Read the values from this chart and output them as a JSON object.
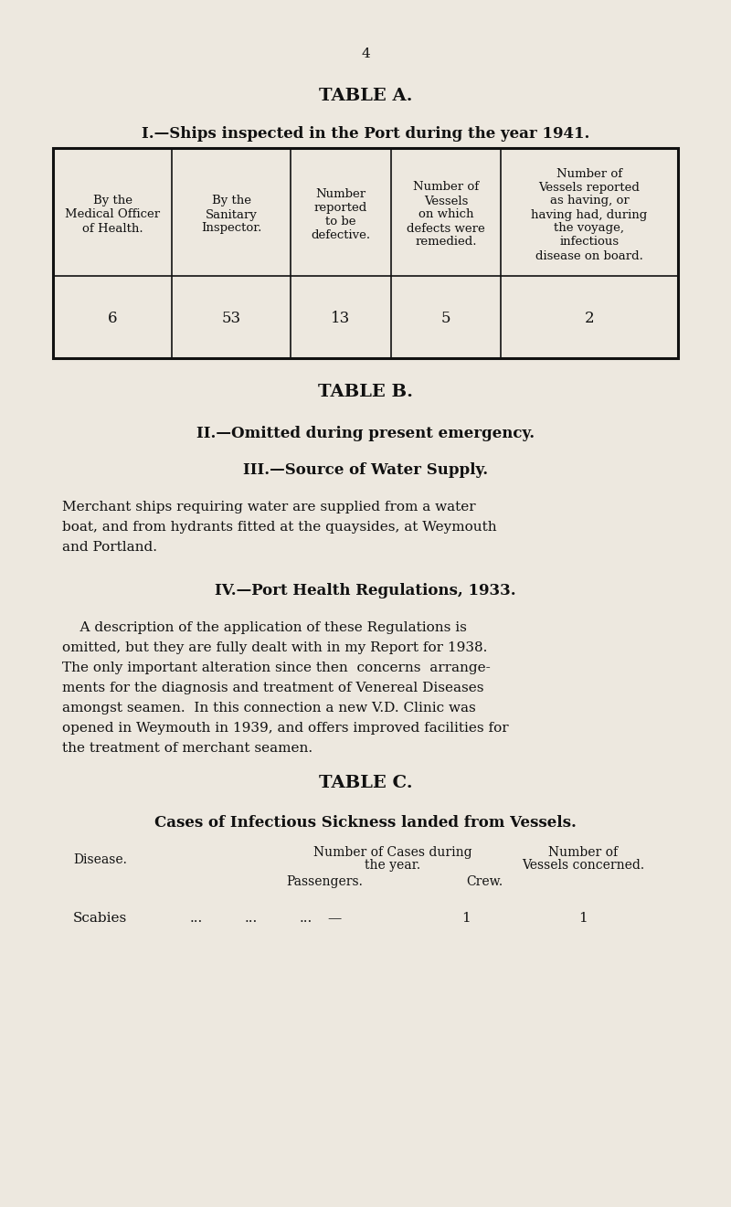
{
  "bg_color": "#ede8df",
  "text_color": "#111111",
  "page_number": "4",
  "table_a_title": "TABLE A.",
  "table_a_subtitle": "I.—Ships inspected in the Port during the year 1941.",
  "table_a_headers": [
    "By the\nMedical Officer\nof Health.",
    "By the\nSanitary\nInspector.",
    "Number\nreported\nto be\ndefective.",
    "Number of\nVessels\non which\ndefects were\nremedied.",
    "Number of\nVessels reported\nas having, or\nhaving had, during\nthe voyage,\ninfectious\ndisease on board."
  ],
  "table_a_values": [
    "6",
    "53",
    "13",
    "5",
    "2"
  ],
  "table_b_title": "TABLE B.",
  "section_ii": "II.—Omitted during present emergency.",
  "section_iii": "III.—Source of Water Supply.",
  "section_iii_lines": [
    "Merchant ships requiring water are supplied from a water",
    "boat, and from hydrants fitted at the quaysides, at Weymouth",
    "and Portland."
  ],
  "section_iv": "IV.—Port Health Regulations, 1933.",
  "section_iv_lines": [
    "    A description of the application of these Regulations is",
    "omitted, but they are fully dealt with in my Report for 1938.",
    "The only important alteration since then  concerns  arrange-",
    "ments for the diagnosis and treatment of Venereal Diseases",
    "amongst seamen.  In this connection a new V.D. Clinic was",
    "opened in Weymouth in 1939, and offers improved facilities for",
    "the treatment of merchant seamen."
  ],
  "table_c_title": "TABLE C.",
  "table_c_subtitle": "Cases of Infectious Sickness landed from Vessels.",
  "scabies_dots": "...",
  "scabies_dash": "—",
  "scabies_crew": "1",
  "scabies_vessels": "1"
}
